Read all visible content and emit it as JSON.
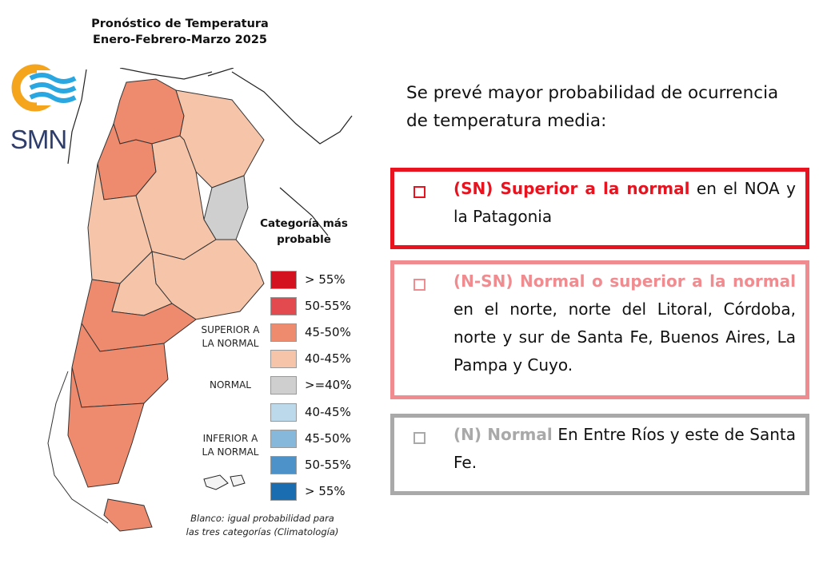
{
  "header": {
    "title_line1": "Pronóstico de Temperatura",
    "title_line2": "Enero-Febrero-Marzo 2025"
  },
  "logo": {
    "text": "SMN",
    "icon": "smn-logo-icon"
  },
  "legend": {
    "title_line1": "Categoría más",
    "title_line2": "probable",
    "groups": {
      "superior_line1": "SUPERIOR A",
      "superior_line2": "LA NORMAL",
      "normal": "NORMAL",
      "inferior_line1": "INFERIOR A",
      "inferior_line2": "LA NORMAL"
    },
    "items": [
      {
        "label": "> 55%",
        "color": "#d4111f"
      },
      {
        "label": "50-55%",
        "color": "#e34a50"
      },
      {
        "label": "45-50%",
        "color": "#ee8a6d"
      },
      {
        "label": "40-45%",
        "color": "#f6c4a8"
      },
      {
        "label": ">=40%",
        "color": "#cfcfcf"
      },
      {
        "label": "40-45%",
        "color": "#bcd9ec"
      },
      {
        "label": "45-50%",
        "color": "#86b8dc"
      },
      {
        "label": "50-55%",
        "color": "#4d92c8"
      },
      {
        "label": "> 55%",
        "color": "#1a6db0"
      }
    ]
  },
  "footnote": {
    "line1": "Blanco: igual probabilidad para",
    "line2": "las tres categorías (Climatología)"
  },
  "intro": {
    "line1": "Se prevé mayor probabilidad de ocurrencia",
    "line2": "de temperatura media:"
  },
  "forecasts": [
    {
      "code": "(SN) Superior a la normal",
      "text": " en el NOA y la Patagonia",
      "color": "#e8131f"
    },
    {
      "code": "(N-SN) Normal o superior a la normal",
      "text": " en el norte, norte del Litoral, Córdoba, norte y sur de Santa Fe, Buenos Aires, La Pampa y Cuyo.",
      "color": "#f08c90"
    },
    {
      "code": "(N) Normal",
      "text": " En Entre Ríos y este de Santa Fe.",
      "color": "#a9a9a9"
    }
  ]
}
